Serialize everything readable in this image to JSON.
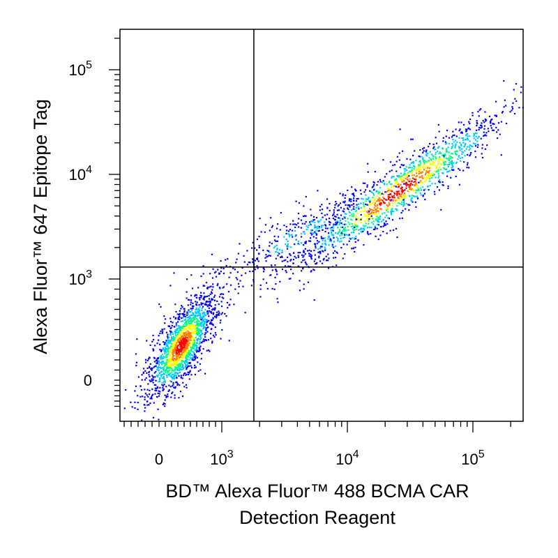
{
  "chart_data": {
    "type": "scatter",
    "subtype": "flow-cytometry-density-plot",
    "xlabel": [
      "BD™ Alexa Fluor™ 488 BCMA CAR",
      "Detection Reagent"
    ],
    "ylabel": "Alexa Fluor™ 647 Epitope Tag",
    "x_scale": "biexponential",
    "y_scale": "biexponential",
    "x_ticks": [
      {
        "value": 0,
        "base": "0",
        "exp": ""
      },
      {
        "value": 1000,
        "base": "10",
        "exp": "3"
      },
      {
        "value": 10000,
        "base": "10",
        "exp": "4"
      },
      {
        "value": 100000,
        "base": "10",
        "exp": "5"
      }
    ],
    "y_ticks": [
      {
        "value": 0,
        "base": "0",
        "exp": ""
      },
      {
        "value": 1000,
        "base": "10",
        "exp": "3"
      },
      {
        "value": 10000,
        "base": "10",
        "exp": "4"
      },
      {
        "value": 100000,
        "base": "10",
        "exp": "5"
      }
    ],
    "xlim": [
      -600,
      230000
    ],
    "ylim": [
      -600,
      230000
    ],
    "quadrant_gate": {
      "x": 1800,
      "y": 1300
    },
    "density_colors": [
      "#0000ff",
      "#00c8ff",
      "#00ff80",
      "#ffff00",
      "#ff8000",
      "#ff0000"
    ],
    "populations": [
      {
        "center_x": 350,
        "center_y": 350,
        "count": 1600
      },
      {
        "center_x": 25000,
        "center_y": 7000,
        "count": 1400
      },
      {
        "center_x": 4000,
        "center_y": 2600,
        "count": 400
      }
    ],
    "grid": false,
    "legend": "none"
  }
}
